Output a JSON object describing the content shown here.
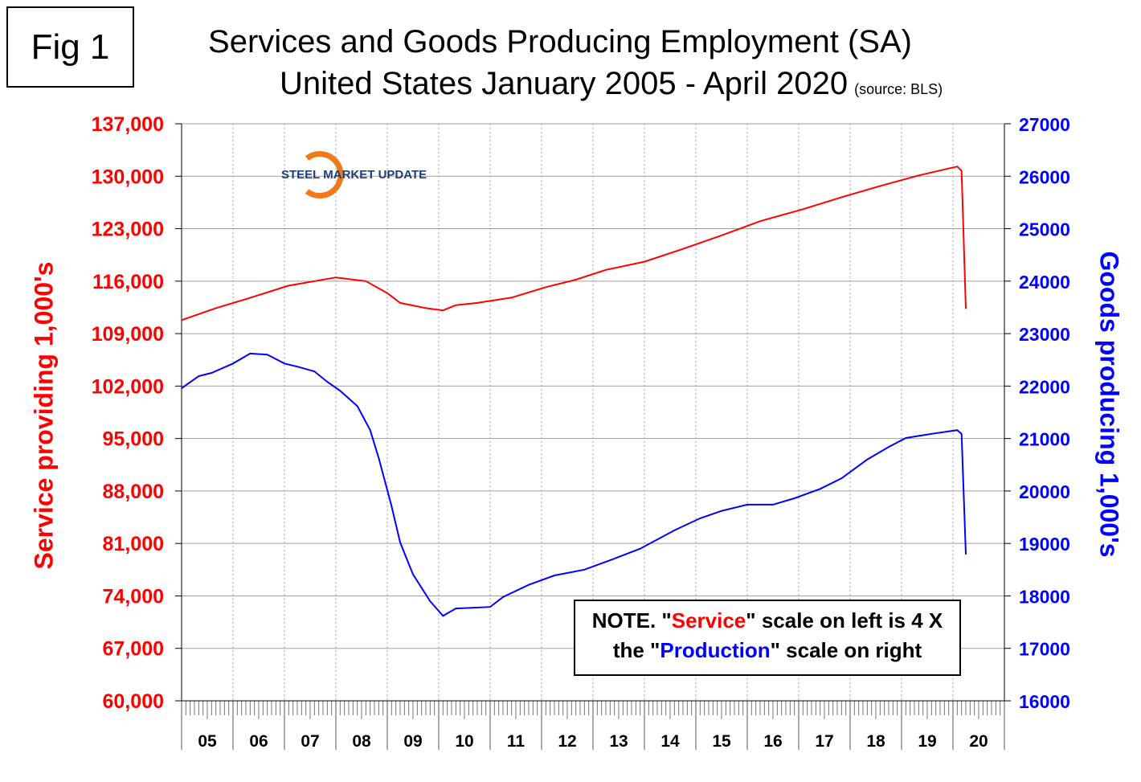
{
  "figure_label": "Fig 1",
  "title_line1": "Services and Goods Producing Employment (SA)",
  "title_line2": "United States January 2005 - April 2020",
  "source": "(source: BLS)",
  "logo": "STEEL MARKET UPDATE",
  "note": {
    "prefix": "NOTE. \"",
    "service_word": "Service",
    "middle": "\" scale on left  is 4 X the \"",
    "production_word": "Production",
    "suffix": "\" scale on right"
  },
  "colors": {
    "service": "#ff0000",
    "goods": "#0000ff",
    "grid": "#a0a0a0"
  },
  "chart_data": {
    "type": "line",
    "title": "Services and Goods Producing Employment (SA) United States January 2005 - April 2020",
    "x_tick_labels": [
      "05",
      "06",
      "07",
      "08",
      "09",
      "10",
      "11",
      "12",
      "13",
      "14",
      "15",
      "16",
      "17",
      "18",
      "19",
      "20"
    ],
    "xlim": [
      "2005-01",
      "2020-12"
    ],
    "grid": true,
    "left_axis": {
      "label": "Service providing 1,000's",
      "ylim": [
        60000,
        137000
      ],
      "ticks": [
        "60,000",
        "67,000",
        "74,000",
        "81,000",
        "88,000",
        "95,000",
        "102,000",
        "109,000",
        "116,000",
        "123,000",
        "130,000",
        "137,000"
      ]
    },
    "right_axis": {
      "label": "Goods producing 1,000's",
      "ylim": [
        16000,
        27000
      ],
      "ticks": [
        "16000",
        "17000",
        "18000",
        "19000",
        "20000",
        "21000",
        "22000",
        "23000",
        "24000",
        "25000",
        "26000",
        "27000"
      ]
    },
    "series": [
      {
        "axis": "left",
        "color": "#ff0000",
        "points": [
          [
            "2005-01",
            110800
          ],
          [
            "2005-09",
            112400
          ],
          [
            "2006-04",
            113600
          ],
          [
            "2007-02",
            115400
          ],
          [
            "2008-01",
            116500
          ],
          [
            "2008-08",
            116000
          ],
          [
            "2009-01",
            114400
          ],
          [
            "2009-04",
            113100
          ],
          [
            "2009-10",
            112400
          ],
          [
            "2010-02",
            112100
          ],
          [
            "2010-05",
            112800
          ],
          [
            "2010-10",
            113100
          ],
          [
            "2011-06",
            113800
          ],
          [
            "2012-02",
            115200
          ],
          [
            "2012-09",
            116200
          ],
          [
            "2013-04",
            117500
          ],
          [
            "2014-01",
            118600
          ],
          [
            "2014-10",
            120300
          ],
          [
            "2015-07",
            122100
          ],
          [
            "2016-04",
            124000
          ],
          [
            "2017-02",
            125600
          ],
          [
            "2017-11",
            127200
          ],
          [
            "2018-08",
            128700
          ],
          [
            "2019-05",
            130100
          ],
          [
            "2020-02",
            131300
          ],
          [
            "2020-03",
            130700
          ],
          [
            "2020-04",
            112300
          ]
        ]
      },
      {
        "axis": "right",
        "color": "#0000ff",
        "points": [
          [
            "2005-01",
            21960
          ],
          [
            "2005-05",
            22190
          ],
          [
            "2005-08",
            22250
          ],
          [
            "2006-01",
            22430
          ],
          [
            "2006-05",
            22620
          ],
          [
            "2006-09",
            22600
          ],
          [
            "2007-01",
            22430
          ],
          [
            "2007-04",
            22370
          ],
          [
            "2007-08",
            22280
          ],
          [
            "2007-11",
            22080
          ],
          [
            "2008-02",
            21910
          ],
          [
            "2008-06",
            21620
          ],
          [
            "2008-09",
            21160
          ],
          [
            "2008-11",
            20630
          ],
          [
            "2009-02",
            19710
          ],
          [
            "2009-04",
            19020
          ],
          [
            "2009-07",
            18410
          ],
          [
            "2009-11",
            17900
          ],
          [
            "2010-02",
            17620
          ],
          [
            "2010-05",
            17760
          ],
          [
            "2011-01",
            17790
          ],
          [
            "2011-04",
            17980
          ],
          [
            "2011-10",
            18210
          ],
          [
            "2012-04",
            18390
          ],
          [
            "2012-11",
            18500
          ],
          [
            "2013-05",
            18680
          ],
          [
            "2013-12",
            18900
          ],
          [
            "2014-08",
            19250
          ],
          [
            "2015-02",
            19480
          ],
          [
            "2015-07",
            19620
          ],
          [
            "2016-01",
            19740
          ],
          [
            "2016-07",
            19740
          ],
          [
            "2016-12",
            19860
          ],
          [
            "2017-06",
            20040
          ],
          [
            "2017-11",
            20240
          ],
          [
            "2018-05",
            20600
          ],
          [
            "2018-10",
            20840
          ],
          [
            "2019-02",
            21010
          ],
          [
            "2019-08",
            21090
          ],
          [
            "2020-02",
            21160
          ],
          [
            "2020-03",
            21090
          ],
          [
            "2020-04",
            18790
          ]
        ]
      }
    ]
  }
}
